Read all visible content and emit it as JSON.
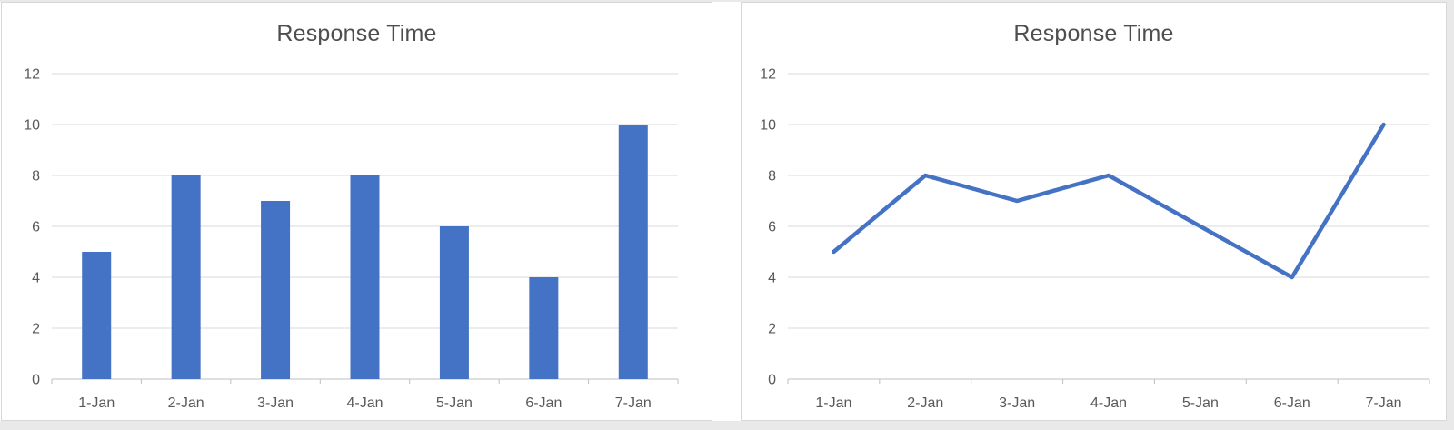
{
  "chart_data": [
    {
      "type": "bar",
      "title": "Response Time",
      "categories": [
        "1-Jan",
        "2-Jan",
        "3-Jan",
        "4-Jan",
        "5-Jan",
        "6-Jan",
        "7-Jan"
      ],
      "values": [
        5,
        8,
        7,
        8,
        6,
        4,
        10
      ],
      "xlabel": "",
      "ylabel": "",
      "ylim": [
        0,
        12
      ],
      "yticks": [
        0,
        2,
        4,
        6,
        8,
        10,
        12
      ],
      "grid": "horizontal",
      "legend_position": "none"
    },
    {
      "type": "line",
      "title": "Response Time",
      "categories": [
        "1-Jan",
        "2-Jan",
        "3-Jan",
        "4-Jan",
        "5-Jan",
        "6-Jan",
        "7-Jan"
      ],
      "values": [
        5,
        8,
        7,
        8,
        6,
        4,
        10
      ],
      "xlabel": "",
      "ylabel": "",
      "ylim": [
        0,
        12
      ],
      "yticks": [
        0,
        2,
        4,
        6,
        8,
        10,
        12
      ],
      "grid": "horizontal",
      "legend_position": "none"
    }
  ],
  "colors": {
    "series_blue": "#4472c4",
    "gridline": "#d9d9d9",
    "axis_line": "#bfbfbf",
    "tick_label": "#595959",
    "title_text": "#4e4e4e",
    "panel_border": "#d7d7d7",
    "panel_background": "#ffffff",
    "page_edge": "#e9e9e9"
  }
}
